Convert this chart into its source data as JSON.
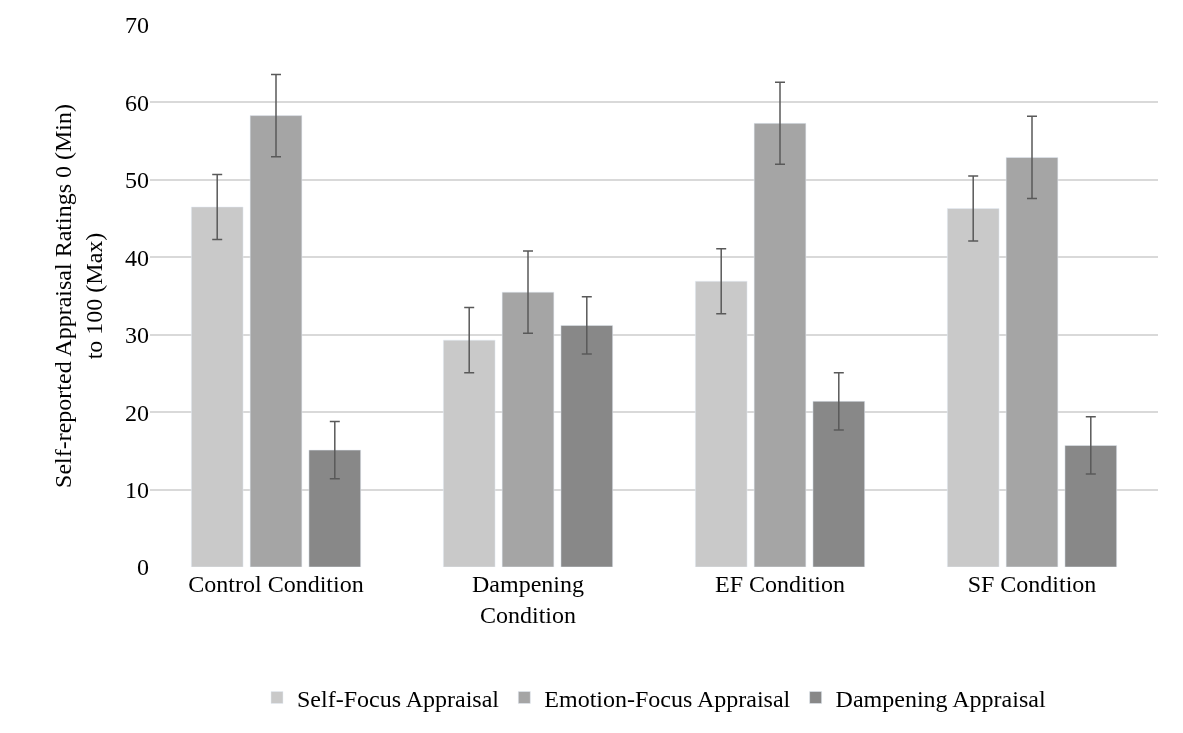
{
  "chart_data": {
    "type": "bar",
    "ylabel": "Self-reported Appraisal Ratings 0 (Min) to 100 (Max)",
    "categories": [
      "Control Condition",
      "Dampening Condition",
      "EF Condition",
      "SF Condition"
    ],
    "series": [
      {
        "name": "Self-Focus Appraisal",
        "color": "#c9c9c9",
        "values": [
          46.5,
          29.3,
          36.9,
          46.3
        ],
        "errors": [
          4.2,
          4.2,
          4.2,
          4.2
        ]
      },
      {
        "name": "Emotion-Focus Appraisal",
        "color": "#a5a5a5",
        "values": [
          58.3,
          35.5,
          57.3,
          52.9
        ],
        "errors": [
          5.3,
          5.3,
          5.3,
          5.3
        ]
      },
      {
        "name": "Dampening Appraisal",
        "color": "#888888",
        "values": [
          15.1,
          31.2,
          21.4,
          15.7
        ],
        "errors": [
          3.7,
          3.7,
          3.7,
          3.7
        ]
      }
    ],
    "ylim": [
      0,
      70
    ],
    "yticks": [
      0,
      10,
      20,
      30,
      40,
      50,
      60,
      70
    ],
    "grid": "y",
    "legend": "bottom"
  }
}
